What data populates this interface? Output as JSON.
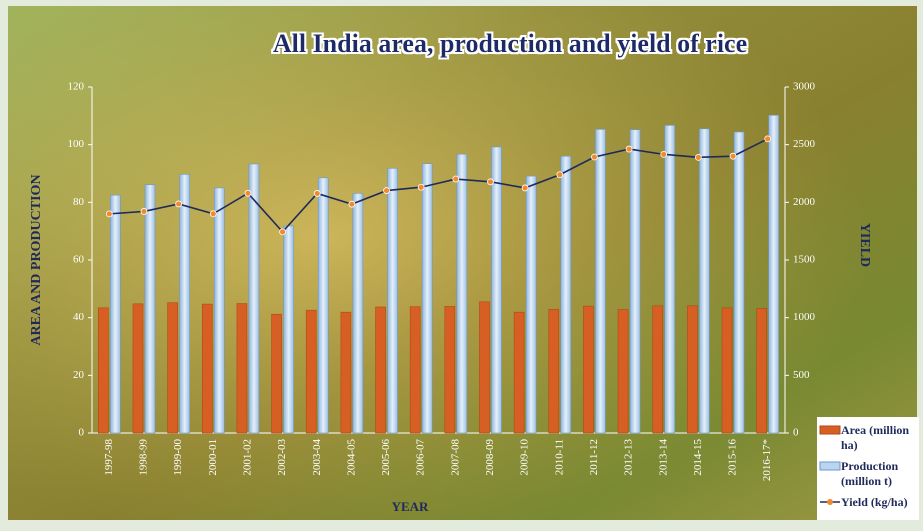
{
  "chart_data": {
    "type": "bar-line",
    "title": "All India area, production and yield of rice",
    "x_label": "YEAR",
    "y_label": "AREA AND PRODUCTION",
    "y2_label": "YIELD",
    "categories": [
      "1997-98",
      "1998-99",
      "1999-00",
      "2000-01",
      "2001-02",
      "2002-03",
      "2003-04",
      "2004-05",
      "2005-06",
      "2006-07",
      "2007-08",
      "2008-09",
      "2009-10",
      "2010-11",
      "2011-12",
      "2012-13",
      "2013-14",
      "2014-15",
      "2015-16",
      "2016-17*"
    ],
    "series": [
      {
        "name": "Area (million ha)",
        "type": "bar",
        "color": "#d85f24",
        "values": [
          43.4,
          44.8,
          45.2,
          44.7,
          44.9,
          41.2,
          42.6,
          41.9,
          43.7,
          43.8,
          43.9,
          45.5,
          41.9,
          42.9,
          44.0,
          42.8,
          44.1,
          44.1,
          43.4,
          43.2
        ]
      },
      {
        "name": "Production (million t)",
        "type": "bar",
        "color": "#b9d5ef",
        "values": [
          82.5,
          86.1,
          89.7,
          85.0,
          93.3,
          71.8,
          88.5,
          83.1,
          91.8,
          93.4,
          96.7,
          99.2,
          89.1,
          96.0,
          105.3,
          105.2,
          106.7,
          105.5,
          104.4,
          110.2
        ]
      },
      {
        "name": "Yield (kg/ha)",
        "type": "line",
        "axis": "y2",
        "color": "#1f2a5c",
        "marker_color": "#f08a2c",
        "values": [
          1900,
          1921,
          1986,
          1901,
          2079,
          1744,
          2077,
          1984,
          2102,
          2131,
          2202,
          2178,
          2125,
          2239,
          2393,
          2462,
          2416,
          2390,
          2400,
          2550
        ]
      }
    ],
    "ylim": [
      0,
      120
    ],
    "yticks": [
      0,
      20,
      40,
      60,
      80,
      100,
      120
    ],
    "y2lim": [
      0,
      3000
    ],
    "y2ticks": [
      0,
      500,
      1000,
      1500,
      2000,
      2500,
      3000
    ],
    "legend": "bottom-right"
  }
}
